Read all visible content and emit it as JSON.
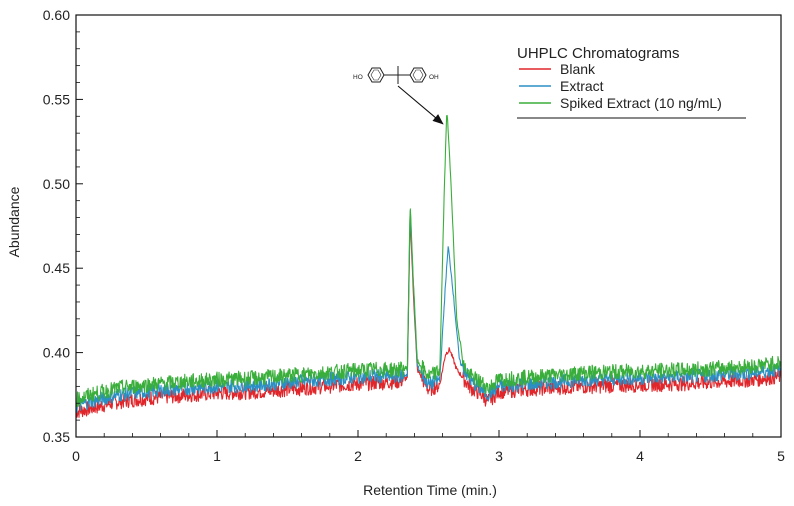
{
  "chart_data": {
    "type": "line",
    "xlabel": "Retention Time (min.)",
    "ylabel": "Abundance",
    "xlim": [
      0,
      5
    ],
    "ylim": [
      0.35,
      0.6
    ],
    "x_ticks": [
      "0",
      "1",
      "2",
      "3",
      "4",
      "5"
    ],
    "y_ticks": [
      "0.35",
      "0.40",
      "0.45",
      "0.50",
      "0.55",
      "0.60"
    ],
    "grid": false,
    "legend_title": "UHPLC Chromatograms",
    "legend_position": "top-right",
    "annotation": {
      "type": "arrow-with-structure",
      "structure_labels": [
        "HO",
        "OH"
      ],
      "points_to": {
        "x": 2.63,
        "y": 0.545
      }
    },
    "series": [
      {
        "name": "Blank",
        "color": "#e0262b",
        "x": [
          0,
          0.1,
          0.2,
          0.3,
          0.5,
          0.8,
          1.0,
          1.3,
          1.6,
          1.9,
          2.1,
          2.3,
          2.35,
          2.37,
          2.39,
          2.42,
          2.5,
          2.58,
          2.62,
          2.65,
          2.7,
          2.8,
          2.88,
          2.92,
          3.0,
          3.3,
          3.6,
          4.0,
          4.4,
          4.8,
          5.0
        ],
        "values": [
          0.365,
          0.367,
          0.369,
          0.371,
          0.373,
          0.375,
          0.376,
          0.377,
          0.379,
          0.381,
          0.382,
          0.383,
          0.385,
          0.481,
          0.44,
          0.39,
          0.378,
          0.381,
          0.399,
          0.402,
          0.39,
          0.379,
          0.375,
          0.371,
          0.377,
          0.379,
          0.38,
          0.381,
          0.382,
          0.384,
          0.386
        ]
      },
      {
        "name": "Extract",
        "color": "#2a8fc5",
        "x": [
          0,
          0.1,
          0.2,
          0.3,
          0.5,
          0.8,
          1.0,
          1.3,
          1.6,
          1.9,
          2.1,
          2.3,
          2.35,
          2.37,
          2.39,
          2.42,
          2.5,
          2.58,
          2.62,
          2.64,
          2.67,
          2.72,
          2.8,
          2.88,
          2.92,
          3.0,
          3.3,
          3.6,
          4.0,
          4.4,
          4.8,
          5.0
        ],
        "values": [
          0.368,
          0.371,
          0.373,
          0.375,
          0.377,
          0.379,
          0.38,
          0.381,
          0.383,
          0.385,
          0.386,
          0.386,
          0.387,
          0.487,
          0.445,
          0.392,
          0.381,
          0.384,
          0.44,
          0.463,
          0.44,
          0.395,
          0.383,
          0.378,
          0.375,
          0.38,
          0.382,
          0.384,
          0.385,
          0.386,
          0.388,
          0.39
        ]
      },
      {
        "name": "Spiked Extract (10 ng/mL)",
        "color": "#3aae3a",
        "x": [
          0,
          0.1,
          0.2,
          0.3,
          0.5,
          0.8,
          1.0,
          1.3,
          1.6,
          1.9,
          2.1,
          2.3,
          2.35,
          2.37,
          2.39,
          2.42,
          2.5,
          2.58,
          2.61,
          2.63,
          2.66,
          2.7,
          2.75,
          2.8,
          2.88,
          2.92,
          3.0,
          3.3,
          3.6,
          4.0,
          4.4,
          4.8,
          5.0
        ],
        "values": [
          0.372,
          0.375,
          0.377,
          0.379,
          0.381,
          0.383,
          0.384,
          0.385,
          0.387,
          0.389,
          0.39,
          0.39,
          0.391,
          0.489,
          0.447,
          0.395,
          0.386,
          0.389,
          0.49,
          0.545,
          0.5,
          0.42,
          0.392,
          0.386,
          0.382,
          0.379,
          0.384,
          0.386,
          0.388,
          0.389,
          0.39,
          0.392,
          0.394
        ]
      }
    ]
  }
}
